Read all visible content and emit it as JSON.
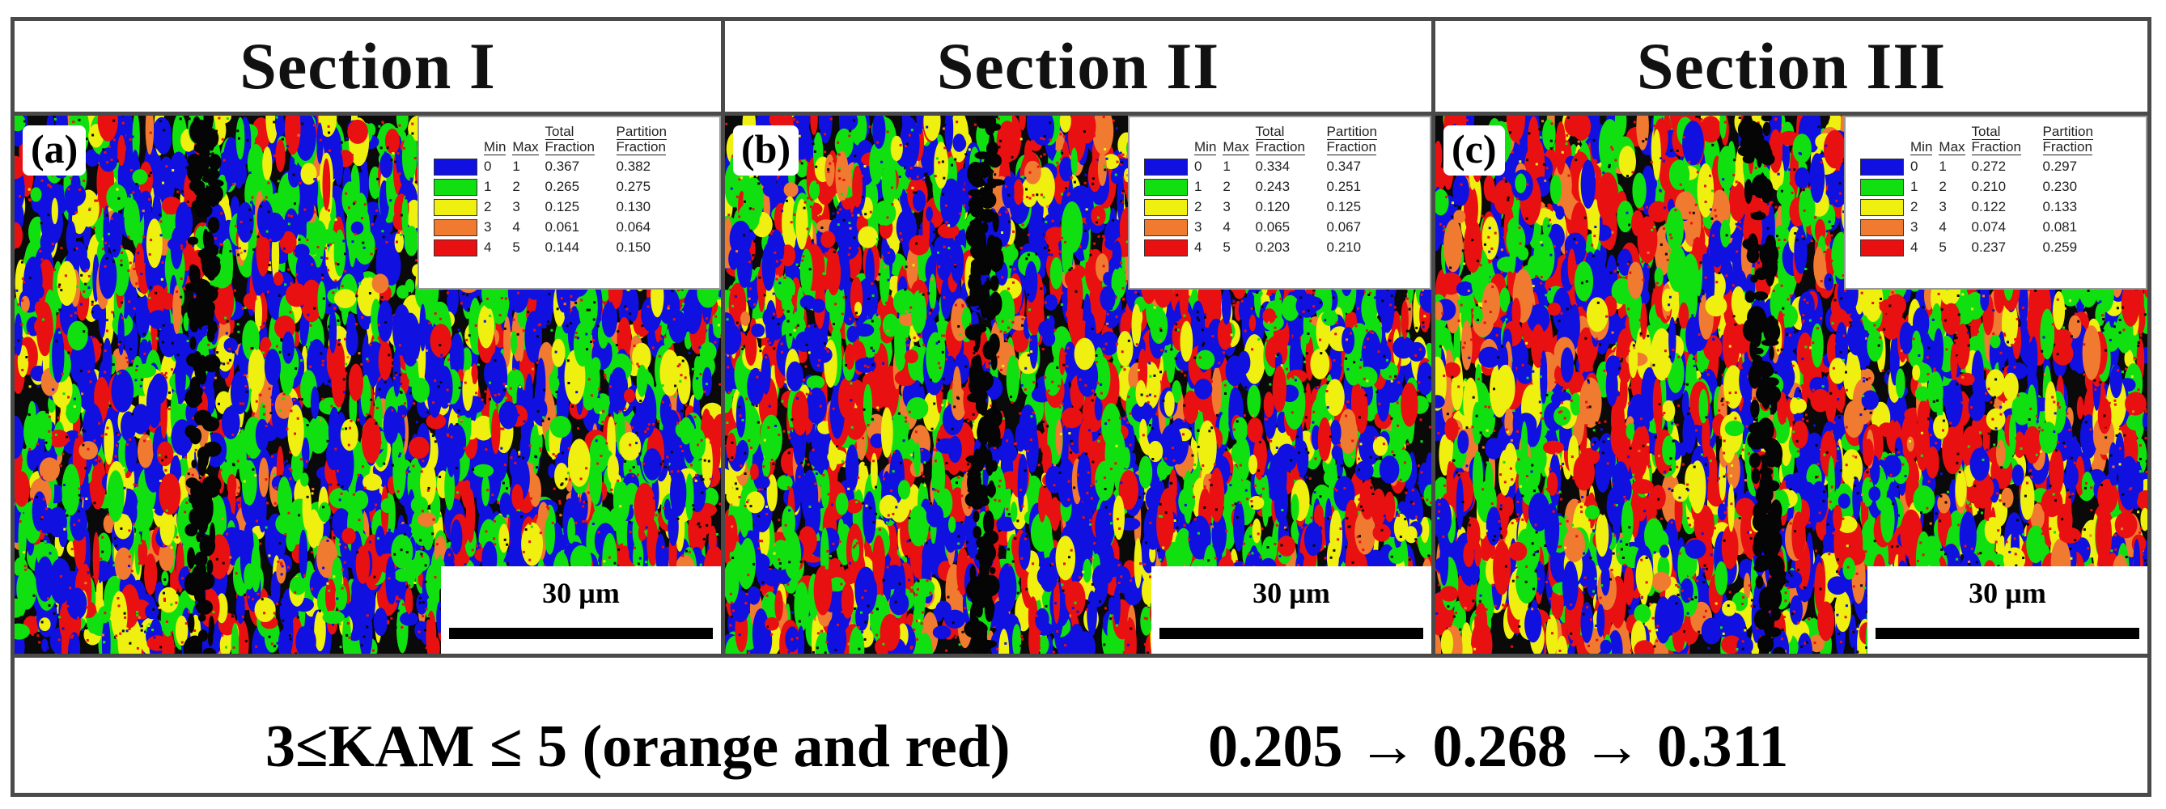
{
  "sections": [
    {
      "title": "Section I",
      "label": "(a)",
      "scale_text": "30 µm",
      "legend": {
        "headers": [
          "Min",
          "Max",
          "Total Fraction",
          "Partition Fraction"
        ],
        "rows": [
          {
            "color": "#1010e0",
            "min": "0",
            "max": "1",
            "total": "0.367",
            "partition": "0.382"
          },
          {
            "color": "#10e010",
            "min": "1",
            "max": "2",
            "total": "0.265",
            "partition": "0.275"
          },
          {
            "color": "#f0f010",
            "min": "2",
            "max": "3",
            "total": "0.125",
            "partition": "0.130"
          },
          {
            "color": "#f07a30",
            "min": "3",
            "max": "4",
            "total": "0.061",
            "partition": "0.064"
          },
          {
            "color": "#e81010",
            "min": "4",
            "max": "5",
            "total": "0.144",
            "partition": "0.150"
          }
        ]
      }
    },
    {
      "title": "Section II",
      "label": "(b)",
      "scale_text": "30 µm",
      "legend": {
        "headers": [
          "Min",
          "Max",
          "Total Fraction",
          "Partition Fraction"
        ],
        "rows": [
          {
            "color": "#1010e0",
            "min": "0",
            "max": "1",
            "total": "0.334",
            "partition": "0.347"
          },
          {
            "color": "#10e010",
            "min": "1",
            "max": "2",
            "total": "0.243",
            "partition": "0.251"
          },
          {
            "color": "#f0f010",
            "min": "2",
            "max": "3",
            "total": "0.120",
            "partition": "0.125"
          },
          {
            "color": "#f07a30",
            "min": "3",
            "max": "4",
            "total": "0.065",
            "partition": "0.067"
          },
          {
            "color": "#e81010",
            "min": "4",
            "max": "5",
            "total": "0.203",
            "partition": "0.210"
          }
        ]
      }
    },
    {
      "title": "Section III",
      "label": "(c)",
      "scale_text": "30 µm",
      "legend": {
        "headers": [
          "Min",
          "Max",
          "Total Fraction",
          "Partition Fraction"
        ],
        "rows": [
          {
            "color": "#1010e0",
            "min": "0",
            "max": "1",
            "total": "0.272",
            "partition": "0.297"
          },
          {
            "color": "#10e010",
            "min": "1",
            "max": "2",
            "total": "0.210",
            "partition": "0.230"
          },
          {
            "color": "#f0f010",
            "min": "2",
            "max": "3",
            "total": "0.122",
            "partition": "0.133"
          },
          {
            "color": "#f07a30",
            "min": "3",
            "max": "4",
            "total": "0.074",
            "partition": "0.081"
          },
          {
            "color": "#e81010",
            "min": "4",
            "max": "5",
            "total": "0.237",
            "partition": "0.259"
          }
        ]
      }
    }
  ],
  "caption": {
    "left": "3≤KAM ≤ 5 (orange and red)",
    "right": "0.205 → 0.268 → 0.311"
  }
}
